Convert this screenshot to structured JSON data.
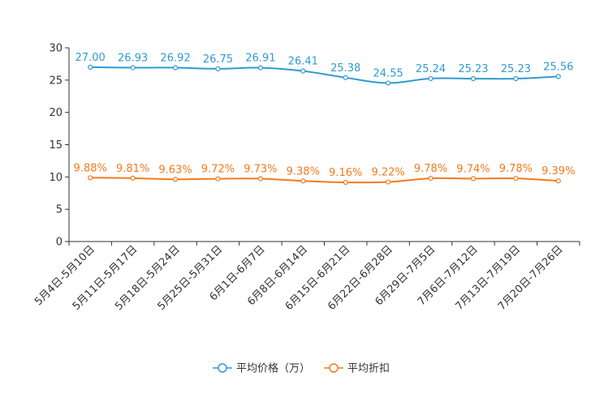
{
  "chart_data": {
    "type": "line",
    "title": "",
    "xlabel": "",
    "ylabel": "",
    "ylim": [
      0,
      30
    ],
    "yticks": [
      0,
      5,
      10,
      15,
      20,
      25,
      30
    ],
    "grid": false,
    "legend_position": "bottom",
    "categories": [
      "5月4日-5月10日",
      "5月11日-5月17日",
      "5月18日-5月24日",
      "5月25日-5月31日",
      "6月1日-6月7日",
      "6月8日-6月14日",
      "6月15日-6月21日",
      "6月22日-6月28日",
      "6月29日-7月5日",
      "7月6日-7月12日",
      "7月13日-7月19日",
      "7月20日-7月26日"
    ],
    "series": [
      {
        "name": "平均价格（万）",
        "color": "#2f9bd2",
        "values": [
          27.0,
          26.93,
          26.92,
          26.75,
          26.91,
          26.41,
          25.38,
          24.55,
          25.24,
          25.23,
          25.23,
          25.56
        ],
        "labels": [
          "27.00",
          "26.93",
          "26.92",
          "26.75",
          "26.91",
          "26.41",
          "25.38",
          "24.55",
          "25.24",
          "25.23",
          "25.23",
          "25.56"
        ]
      },
      {
        "name": "平均折扣",
        "color": "#f57a1c",
        "values": [
          9.88,
          9.81,
          9.63,
          9.72,
          9.73,
          9.38,
          9.16,
          9.22,
          9.78,
          9.74,
          9.78,
          9.39
        ],
        "labels": [
          "9.88%",
          "9.81%",
          "9.63%",
          "9.72%",
          "9.73%",
          "9.38%",
          "9.16%",
          "9.22%",
          "9.78%",
          "9.74%",
          "9.78%",
          "9.39%"
        ]
      }
    ]
  }
}
